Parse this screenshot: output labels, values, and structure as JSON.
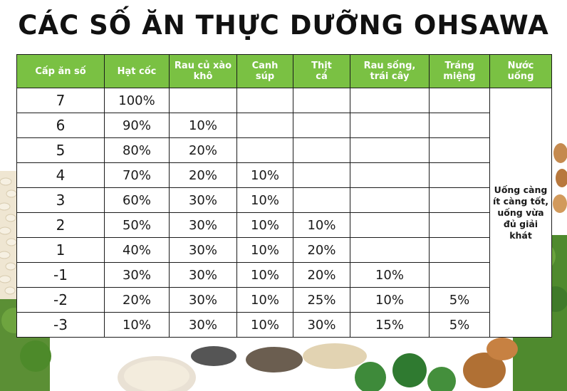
{
  "title": "CÁC SỐ ĂN THỰC DƯỠNG OHSAWA",
  "colors": {
    "header_bg": "#7ac143",
    "header_text": "#ffffff",
    "border": "#1b1b1b"
  },
  "table": {
    "headers": [
      "Cấp ăn số",
      "Hạt cốc",
      "Rau củ xào\nkhô",
      "Canh\nsúp",
      "Thịt\ncá",
      "Rau sống,\ntrái cây",
      "Tráng\nmiệng",
      "Nước\nuống"
    ],
    "rows": [
      {
        "level": "7",
        "cells": [
          "100%",
          "",
          "",
          "",
          "",
          ""
        ]
      },
      {
        "level": "6",
        "cells": [
          "90%",
          "10%",
          "",
          "",
          "",
          ""
        ]
      },
      {
        "level": "5",
        "cells": [
          "80%",
          "20%",
          "",
          "",
          "",
          ""
        ]
      },
      {
        "level": "4",
        "cells": [
          "70%",
          "20%",
          "10%",
          "",
          "",
          ""
        ]
      },
      {
        "level": "3",
        "cells": [
          "60%",
          "30%",
          "10%",
          "",
          "",
          ""
        ]
      },
      {
        "level": "2",
        "cells": [
          "50%",
          "30%",
          "10%",
          "10%",
          "",
          ""
        ]
      },
      {
        "level": "1",
        "cells": [
          "40%",
          "30%",
          "10%",
          "20%",
          "",
          ""
        ]
      },
      {
        "level": "-1",
        "cells": [
          "30%",
          "30%",
          "10%",
          "20%",
          "10%",
          ""
        ]
      },
      {
        "level": "-2",
        "cells": [
          "20%",
          "30%",
          "10%",
          "25%",
          "10%",
          "5%"
        ]
      },
      {
        "level": "-3",
        "cells": [
          "10%",
          "30%",
          "10%",
          "30%",
          "15%",
          "5%"
        ]
      }
    ],
    "water_note": "Uống càng ít càng tốt, uống vừa đủ giải khát"
  },
  "decor_icons": [
    "beans-icon",
    "almonds-icon",
    "dill-herb-icon",
    "sesame-bowl-icon",
    "chia-bowl-icon",
    "grains-bowl-icon",
    "broccoli-icon",
    "dried-fruit-icon"
  ]
}
